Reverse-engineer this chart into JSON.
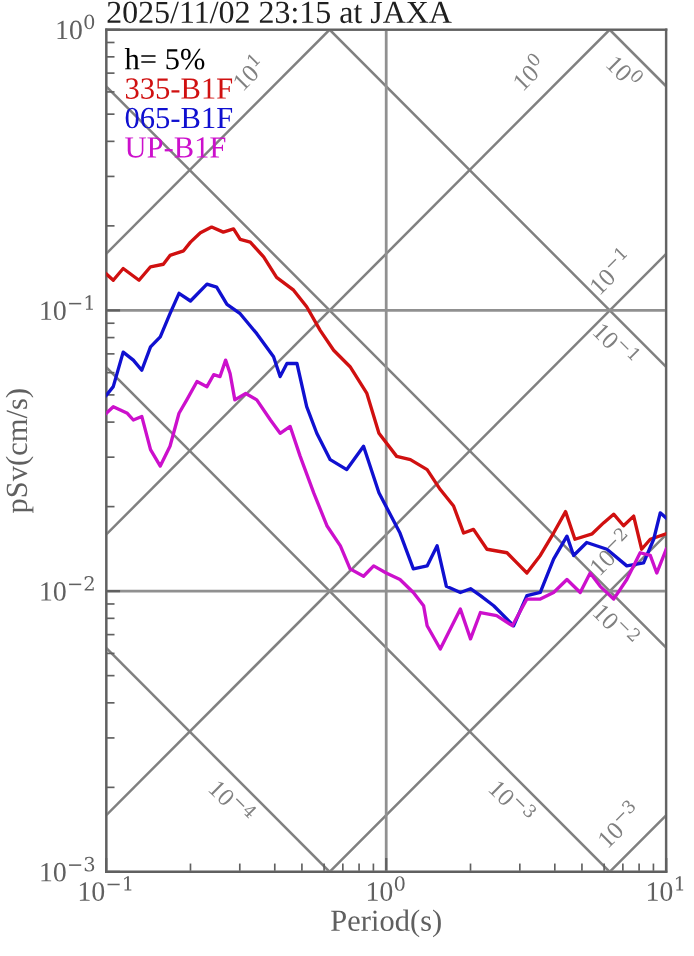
{
  "chart_data": {
    "type": "line",
    "title": "2025/11/02 23:15 at JAXA",
    "xlabel": "Period(s)",
    "ylabel": "pSv(cm/s)",
    "legend_title": "h= 5%",
    "legend": "top left",
    "log": "xy",
    "grid": true,
    "xlim": [
      0.1,
      10
    ],
    "ylim": [
      0.001,
      1
    ],
    "xticks": [
      {
        "value": 0.1,
        "label": "10$^{−1}$"
      },
      {
        "value": 1,
        "label": "10$^{0}$"
      },
      {
        "value": 10,
        "label": "10$^{1}$"
      }
    ],
    "yticks": [
      {
        "value": 0.001,
        "label": "10$^{−3}$"
      },
      {
        "value": 0.01,
        "label": "10$^{−2}$"
      },
      {
        "value": 0.1,
        "label": "10$^{−1}$"
      },
      {
        "value": 1,
        "label": "10$^{0}$"
      }
    ],
    "series": [
      {
        "name": "335-B1F",
        "color": "#d01010",
        "x": [
          0.1,
          0.106,
          0.115,
          0.131,
          0.144,
          0.16,
          0.169,
          0.189,
          0.2,
          0.217,
          0.238,
          0.262,
          0.285,
          0.301,
          0.327,
          0.365,
          0.406,
          0.467,
          0.52,
          0.581,
          0.649,
          0.743,
          0.853,
          0.942,
          1.09,
          1.22,
          1.4,
          1.56,
          1.74,
          1.89,
          2.05,
          2.29,
          2.7,
          2.93,
          3.18,
          3.55,
          3.96,
          4.37,
          4.72,
          5.44,
          5.97,
          6.49,
          7.04,
          7.65,
          8.17,
          8.77,
          10
        ],
        "values": [
          0.135,
          0.128,
          0.141,
          0.128,
          0.143,
          0.146,
          0.157,
          0.163,
          0.175,
          0.189,
          0.198,
          0.19,
          0.195,
          0.179,
          0.175,
          0.155,
          0.131,
          0.118,
          0.103,
          0.0849,
          0.0721,
          0.063,
          0.0506,
          0.0365,
          0.0302,
          0.0294,
          0.0271,
          0.023,
          0.0201,
          0.0161,
          0.0166,
          0.0141,
          0.0137,
          0.0126,
          0.0116,
          0.0134,
          0.0161,
          0.0192,
          0.0153,
          0.016,
          0.0175,
          0.0188,
          0.0171,
          0.0185,
          0.0141,
          0.0153,
          0.016
        ]
      },
      {
        "name": "065-B1F",
        "color": "#1010d0",
        "x": [
          0.1,
          0.106,
          0.115,
          0.125,
          0.134,
          0.144,
          0.156,
          0.169,
          0.182,
          0.2,
          0.229,
          0.248,
          0.27,
          0.301,
          0.345,
          0.396,
          0.418,
          0.442,
          0.48,
          0.52,
          0.565,
          0.631,
          0.723,
          0.83,
          0.942,
          1.12,
          1.25,
          1.4,
          1.52,
          1.64,
          1.84,
          2.0,
          2.17,
          2.42,
          2.85,
          3.18,
          3.55,
          3.96,
          4.42,
          4.67,
          5.2,
          6.14,
          7.23,
          8.3,
          9.02,
          9.52,
          10
        ],
        "values": [
          0.0498,
          0.0535,
          0.071,
          0.0665,
          0.0612,
          0.0741,
          0.0805,
          0.0973,
          0.115,
          0.108,
          0.124,
          0.121,
          0.105,
          0.0973,
          0.0826,
          0.0684,
          0.0581,
          0.0647,
          0.0647,
          0.0454,
          0.0365,
          0.0294,
          0.0271,
          0.0328,
          0.0224,
          0.0161,
          0.012,
          0.0123,
          0.0145,
          0.0104,
          0.00989,
          0.0102,
          0.00964,
          0.00887,
          0.00753,
          0.00964,
          0.00989,
          0.013,
          0.0157,
          0.0134,
          0.0149,
          0.0141,
          0.0123,
          0.0126,
          0.0153,
          0.019,
          0.0182
        ]
      },
      {
        "name": "UP-B1F",
        "color": "#cc10cc",
        "x": [
          0.1,
          0.106,
          0.119,
          0.125,
          0.134,
          0.144,
          0.156,
          0.169,
          0.182,
          0.194,
          0.211,
          0.229,
          0.242,
          0.255,
          0.267,
          0.277,
          0.288,
          0.315,
          0.345,
          0.386,
          0.418,
          0.454,
          0.493,
          0.551,
          0.614,
          0.686,
          0.743,
          0.83,
          0.902,
          1.0,
          1.12,
          1.25,
          1.36,
          1.4,
          1.56,
          1.84,
          2.0,
          2.17,
          2.48,
          2.82,
          3.18,
          3.55,
          3.96,
          4.42,
          4.93,
          5.35,
          5.81,
          6.49,
          7.23,
          8.07,
          8.77,
          9.25,
          10
        ],
        "values": [
          0.043,
          0.0454,
          0.043,
          0.0407,
          0.0419,
          0.0319,
          0.0279,
          0.0328,
          0.043,
          0.048,
          0.0558,
          0.0535,
          0.059,
          0.0581,
          0.0665,
          0.0596,
          0.048,
          0.0506,
          0.048,
          0.0407,
          0.0365,
          0.0386,
          0.0302,
          0.0224,
          0.0171,
          0.0145,
          0.012,
          0.0113,
          0.0123,
          0.0116,
          0.011,
          0.00989,
          0.00887,
          0.00753,
          0.00622,
          0.00863,
          0.00676,
          0.00839,
          0.00818,
          0.00753,
          0.00937,
          0.00937,
          0.00989,
          0.011,
          0.00989,
          0.0116,
          0.0104,
          0.00937,
          0.011,
          0.0137,
          0.0134,
          0.0116,
          0.0141
        ]
      },
      {
        "name": "10$^{1}$",
        "line_style": "solid",
        "color": "#808080",
        "x": [
          0.1,
          0.628
        ],
        "values": [
          0.159,
          1
        ]
      },
      {
        "name": "10$^{0}$",
        "line_style": "solid",
        "color": "#808080",
        "x": [
          0.1,
          6.28
        ],
        "values": [
          0.0159,
          1
        ]
      },
      {
        "name": "10$^{−1}$",
        "line_style": "solid",
        "color": "#808080",
        "x": [
          0.1,
          10
        ],
        "values": [
          0.00159,
          0.159
        ]
      },
      {
        "name": "10$^{−2}$",
        "line_style": "solid",
        "color": "#808080",
        "x": [
          0.628,
          10
        ],
        "values": [
          0.001,
          0.0159
        ]
      },
      {
        "name": "10$^{−3}$",
        "line_style": "solid",
        "color": "#808080",
        "x": [
          6.28,
          10
        ],
        "values": [
          0.001,
          0.00159
        ]
      },
      {
        "name": "10$^{0}$",
        "line_style": "solid",
        "color": "#808080",
        "x": [
          6.28,
          10
        ],
        "values": [
          1,
          0.628
        ]
      },
      {
        "name": "10$^{−1}$",
        "line_style": "solid",
        "color": "#808080",
        "x": [
          0.628,
          10
        ],
        "values": [
          1,
          0.0628
        ]
      },
      {
        "name": "10$^{−2}$",
        "line_style": "solid",
        "color": "#808080",
        "x": [
          0.1,
          10
        ],
        "values": [
          0.628,
          0.00628
        ]
      },
      {
        "name": "10$^{−3}$",
        "line_style": "solid",
        "color": "#808080",
        "x": [
          0.1,
          6.28
        ],
        "values": [
          0.0628,
          0.001
        ]
      },
      {
        "name": "10$^{−4}$",
        "line_style": "solid",
        "color": "#808080",
        "x": [
          0.1,
          0.628
        ],
        "values": [
          0.00628,
          0.001
        ]
      }
    ]
  }
}
